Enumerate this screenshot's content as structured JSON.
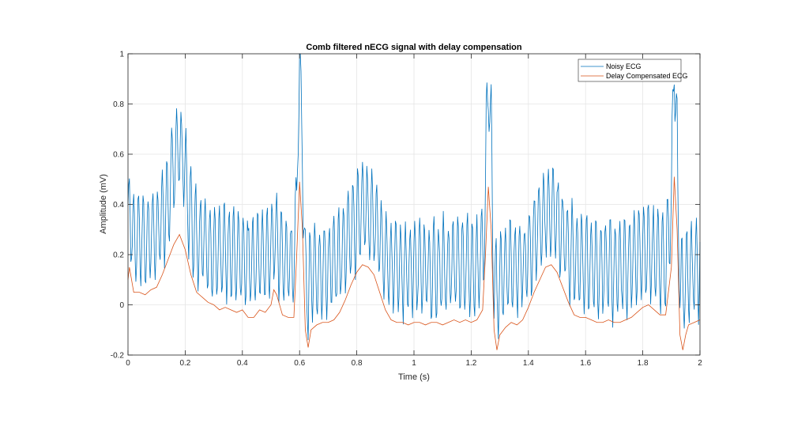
{
  "chart_data": {
    "type": "line",
    "title": "Comb filtered nECG signal with delay compensation",
    "xlabel": "Time (s)",
    "ylabel": "Amplitude (mV)",
    "xlim": [
      0,
      2
    ],
    "ylim": [
      -0.2,
      1
    ],
    "xticks": [
      "0",
      "0.2",
      "0.4",
      "0.6",
      "0.8",
      "1",
      "1.2",
      "1.4",
      "1.6",
      "1.8",
      "2"
    ],
    "yticks": [
      "-0.2",
      "0",
      "0.2",
      "0.4",
      "0.6",
      "0.8",
      "1"
    ],
    "grid": true,
    "legend_position": "top-right",
    "series": [
      {
        "name": "Noisy ECG",
        "color": "#0072BD",
        "baseline_offset": 0.22,
        "noise_amplitude": 0.18,
        "noise_frequency_hz": 60
      },
      {
        "name": "Delay Compensated ECG",
        "color": "#D95319",
        "x": [
          0,
          0.005,
          0.02,
          0.04,
          0.06,
          0.08,
          0.1,
          0.12,
          0.14,
          0.16,
          0.18,
          0.2,
          0.22,
          0.24,
          0.26,
          0.28,
          0.3,
          0.32,
          0.34,
          0.36,
          0.38,
          0.4,
          0.42,
          0.44,
          0.46,
          0.48,
          0.5,
          0.51,
          0.52,
          0.54,
          0.56,
          0.58,
          0.59,
          0.6,
          0.61,
          0.62,
          0.63,
          0.64,
          0.66,
          0.68,
          0.7,
          0.72,
          0.74,
          0.76,
          0.78,
          0.8,
          0.82,
          0.84,
          0.86,
          0.88,
          0.9,
          0.92,
          0.94,
          0.96,
          0.98,
          1.0,
          1.02,
          1.04,
          1.06,
          1.08,
          1.1,
          1.12,
          1.14,
          1.16,
          1.18,
          1.2,
          1.22,
          1.24,
          1.25,
          1.26,
          1.27,
          1.28,
          1.29,
          1.3,
          1.32,
          1.34,
          1.36,
          1.38,
          1.4,
          1.42,
          1.44,
          1.46,
          1.48,
          1.5,
          1.52,
          1.54,
          1.56,
          1.58,
          1.6,
          1.62,
          1.64,
          1.66,
          1.68,
          1.7,
          1.72,
          1.74,
          1.76,
          1.78,
          1.8,
          1.82,
          1.84,
          1.86,
          1.88,
          1.9,
          1.91,
          1.92,
          1.93,
          1.94,
          1.95,
          1.96,
          1.98,
          2.0
        ],
        "y": [
          0.1,
          0.15,
          0.05,
          0.05,
          0.04,
          0.06,
          0.07,
          0.12,
          0.18,
          0.24,
          0.28,
          0.22,
          0.12,
          0.05,
          0.03,
          0.01,
          0.0,
          -0.02,
          -0.01,
          -0.02,
          -0.03,
          -0.02,
          -0.05,
          -0.05,
          -0.02,
          -0.03,
          0.0,
          0.06,
          0.04,
          -0.04,
          -0.05,
          -0.05,
          0.2,
          0.49,
          0.3,
          -0.1,
          -0.17,
          -0.1,
          -0.08,
          -0.07,
          -0.07,
          -0.06,
          -0.03,
          0.02,
          0.08,
          0.13,
          0.16,
          0.15,
          0.12,
          0.05,
          -0.02,
          -0.06,
          -0.07,
          -0.07,
          -0.08,
          -0.07,
          -0.07,
          -0.08,
          -0.07,
          -0.07,
          -0.08,
          -0.07,
          -0.06,
          -0.07,
          -0.06,
          -0.07,
          -0.06,
          -0.02,
          0.2,
          0.47,
          0.3,
          -0.1,
          -0.18,
          -0.12,
          -0.09,
          -0.07,
          -0.08,
          -0.06,
          -0.01,
          0.05,
          0.1,
          0.15,
          0.16,
          0.13,
          0.07,
          0.01,
          -0.04,
          -0.05,
          -0.05,
          -0.06,
          -0.07,
          -0.07,
          -0.06,
          -0.07,
          -0.07,
          -0.06,
          -0.05,
          -0.03,
          -0.01,
          0.0,
          -0.02,
          -0.04,
          -0.04,
          0.15,
          0.51,
          0.3,
          -0.12,
          -0.18,
          -0.12,
          -0.08,
          -0.07,
          -0.06
        ]
      }
    ]
  }
}
